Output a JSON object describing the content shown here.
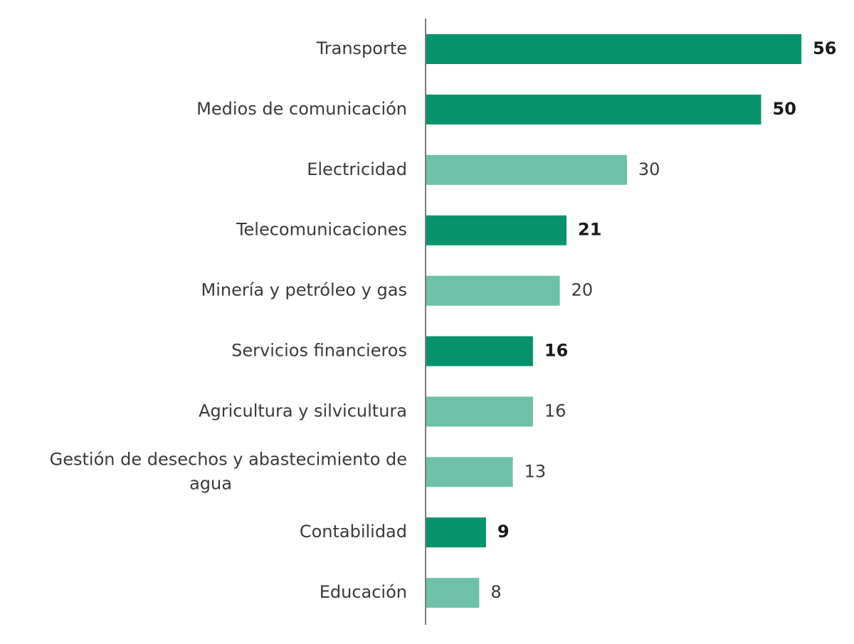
{
  "chart_data": {
    "type": "bar",
    "orientation": "horizontal",
    "categories": [
      "Transporte",
      "Medios de comunicación",
      "Electricidad",
      "Telecomunicaciones",
      "Minería y petróleo y gas",
      "Servicios financieros",
      "Agricultura y silvicultura",
      "Gestión de desechos y abastecimiento de agua",
      "Contabilidad",
      "Educación"
    ],
    "category_lines": [
      [
        "Transporte"
      ],
      [
        "Medios de comunicación"
      ],
      [
        "Electricidad"
      ],
      [
        "Telecomunicaciones"
      ],
      [
        "Minería y petróleo y gas"
      ],
      [
        "Servicios financieros"
      ],
      [
        "Agricultura y silvicultura"
      ],
      [
        "Gestión de desechos y abastecimiento de",
        "agua"
      ],
      [
        "Contabilidad"
      ],
      [
        "Educación"
      ]
    ],
    "values": [
      56,
      50,
      30,
      21,
      20,
      16,
      16,
      13,
      9,
      8
    ],
    "highlighted": [
      true,
      true,
      false,
      true,
      false,
      true,
      false,
      false,
      true,
      false
    ],
    "colors": {
      "highlight": "#06936C",
      "normal": "#6DC1A8",
      "axis": "#7a7a7a"
    },
    "title": "",
    "xlabel": "",
    "ylabel": "",
    "xlim": [
      0,
      60
    ],
    "grid": false,
    "legend": "none",
    "data_labels": true
  }
}
